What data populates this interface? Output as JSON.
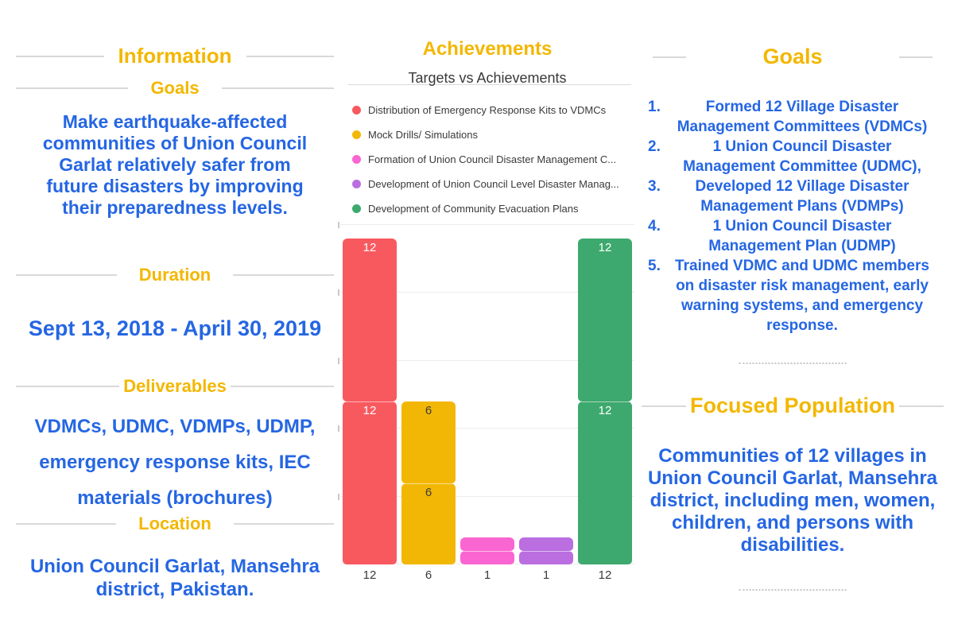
{
  "palette": {
    "gold": "#f3b700",
    "blue": "#2566e3",
    "dark": "#3a3a3a",
    "divider": "#d9d9d9",
    "grid": "#ececec"
  },
  "left_panel": {
    "header": "Information",
    "goals_heading": "Goals",
    "goals_text": "Make earthquake-affected communities of Union Council Garlat relatively safer from future disasters by improving their preparedness levels.",
    "duration_heading": "Duration",
    "duration_text": "Sept 13, 2018 - April 30, 2019",
    "deliverables_heading": "Deliverables",
    "deliverables_text": "VDMCs, UDMC, VDMPs, UDMP, emergency response kits, IEC materials (brochures)",
    "location_heading": "Location",
    "location_text": "Union Council Garlat, Mansehra district, Pakistan."
  },
  "middle_panel": {
    "header": "Achievements"
  },
  "chart_data": {
    "type": "bar",
    "stacked": true,
    "title": "Targets vs Achievements",
    "categories": [
      "Distribution of Emergency Response Kits to VDMCs",
      "Mock Drills/ Simulations",
      "Formation of Union Council Disaster Management C...",
      "Development of Union Council Level Disaster Manag...",
      "Development of Community Evacuation Plans"
    ],
    "series": [
      {
        "name": "Targets",
        "values": [
          12,
          6,
          1,
          1,
          12
        ]
      },
      {
        "name": "Achievements",
        "values": [
          12,
          6,
          1,
          1,
          12
        ]
      }
    ],
    "x_tick_labels": [
      "12",
      "6",
      "1",
      "1",
      "12"
    ],
    "bar_colors": [
      "#f8595f",
      "#f2b705",
      "#f966d1",
      "#ba6ee0",
      "#3ea96e"
    ],
    "value_label_colors": [
      "#ffffff",
      "#3d3d3d",
      "#3d3d3d",
      "#3d3d3d",
      "#ffffff"
    ],
    "ylim": [
      0,
      25
    ],
    "grid_step": 5,
    "grid": true,
    "legend_position": "top"
  },
  "right_panel": {
    "goals_heading": "Goals",
    "goals_numbers": [
      "1.",
      "2.",
      "3.",
      "4.",
      "5."
    ],
    "goals_items": [
      "Formed 12 Village Disaster Management Committees (VDMCs)",
      "1 Union Council Disaster Management Committee (UDMC),",
      "Developed 12 Village Disaster Management Plans (VDMPs)",
      "1 Union Council Disaster Management Plan (UDMP)",
      "Trained VDMC and UDMC members on disaster risk management, early warning systems, and emergency response."
    ],
    "focused_heading": "Focused Population",
    "focused_text": "Communities of 12 villages in Union Council Garlat, Mansehra district, including men, women, children, and persons with disabilities."
  }
}
